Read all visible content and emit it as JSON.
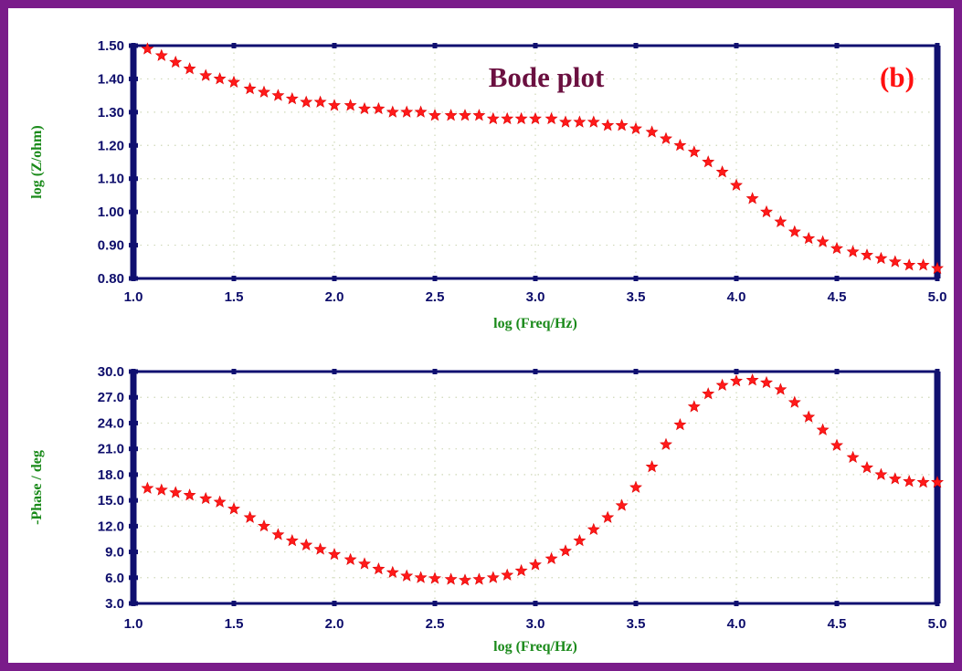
{
  "chart_data": [
    {
      "type": "scatter",
      "title": "Bode plot",
      "panel_label": "(b)",
      "xlabel": "log (Freq/Hz)",
      "ylabel": "log (Z/ohm)",
      "xlim": [
        1.0,
        5.0
      ],
      "ylim": [
        0.8,
        1.5
      ],
      "xticks": [
        "1.0",
        "1.5",
        "2.0",
        "2.5",
        "3.0",
        "3.5",
        "4.0",
        "4.5",
        "5.0"
      ],
      "yticks": [
        "0.80",
        "0.90",
        "1.00",
        "1.10",
        "1.20",
        "1.30",
        "1.40",
        "1.50"
      ],
      "grid": true,
      "marker": "star",
      "marker_color": "#ff1a1a",
      "x": [
        1.07,
        1.14,
        1.21,
        1.28,
        1.36,
        1.43,
        1.5,
        1.58,
        1.65,
        1.72,
        1.79,
        1.86,
        1.93,
        2.0,
        2.08,
        2.15,
        2.22,
        2.29,
        2.36,
        2.43,
        2.5,
        2.58,
        2.65,
        2.72,
        2.79,
        2.86,
        2.93,
        3.0,
        3.08,
        3.15,
        3.22,
        3.29,
        3.36,
        3.43,
        3.5,
        3.58,
        3.65,
        3.72,
        3.79,
        3.86,
        3.93,
        4.0,
        4.08,
        4.15,
        4.22,
        4.29,
        4.36,
        4.43,
        4.5,
        4.58,
        4.65,
        4.72,
        4.79,
        4.86,
        4.93,
        5.0
      ],
      "y": [
        1.49,
        1.47,
        1.45,
        1.43,
        1.41,
        1.4,
        1.39,
        1.37,
        1.36,
        1.35,
        1.34,
        1.33,
        1.33,
        1.32,
        1.32,
        1.31,
        1.31,
        1.3,
        1.3,
        1.3,
        1.29,
        1.29,
        1.29,
        1.29,
        1.28,
        1.28,
        1.28,
        1.28,
        1.28,
        1.27,
        1.27,
        1.27,
        1.26,
        1.26,
        1.25,
        1.24,
        1.22,
        1.2,
        1.18,
        1.15,
        1.12,
        1.08,
        1.04,
        1.0,
        0.97,
        0.94,
        0.92,
        0.91,
        0.89,
        0.88,
        0.87,
        0.86,
        0.85,
        0.84,
        0.84,
        0.83
      ]
    },
    {
      "type": "scatter",
      "xlabel": "log (Freq/Hz)",
      "ylabel": "-Phase / deg",
      "xlim": [
        1.0,
        5.0
      ],
      "ylim": [
        3.0,
        30.0
      ],
      "xticks": [
        "1.0",
        "1.5",
        "2.0",
        "2.5",
        "3.0",
        "3.5",
        "4.0",
        "4.5",
        "5.0"
      ],
      "yticks": [
        "3.0",
        "6.0",
        "9.0",
        "12.0",
        "15.0",
        "18.0",
        "21.0",
        "24.0",
        "27.0",
        "30.0"
      ],
      "grid": true,
      "marker": "star",
      "marker_color": "#ff1a1a",
      "x": [
        1.07,
        1.14,
        1.21,
        1.28,
        1.36,
        1.43,
        1.5,
        1.58,
        1.65,
        1.72,
        1.79,
        1.86,
        1.93,
        2.0,
        2.08,
        2.15,
        2.22,
        2.29,
        2.36,
        2.43,
        2.5,
        2.58,
        2.65,
        2.72,
        2.79,
        2.86,
        2.93,
        3.0,
        3.08,
        3.15,
        3.22,
        3.29,
        3.36,
        3.43,
        3.5,
        3.58,
        3.65,
        3.72,
        3.79,
        3.86,
        3.93,
        4.0,
        4.08,
        4.15,
        4.22,
        4.29,
        4.36,
        4.43,
        4.5,
        4.58,
        4.65,
        4.72,
        4.79,
        4.86,
        4.93,
        5.0
      ],
      "y": [
        16.4,
        16.2,
        15.9,
        15.6,
        15.2,
        14.8,
        14.0,
        13.0,
        12.0,
        11.0,
        10.3,
        9.8,
        9.3,
        8.7,
        8.1,
        7.6,
        7.0,
        6.6,
        6.2,
        6.0,
        5.9,
        5.8,
        5.7,
        5.8,
        6.0,
        6.3,
        6.8,
        7.5,
        8.2,
        9.1,
        10.3,
        11.6,
        13.0,
        14.4,
        16.5,
        18.9,
        21.5,
        23.8,
        25.9,
        27.4,
        28.4,
        28.9,
        29.0,
        28.7,
        27.9,
        26.4,
        24.7,
        23.2,
        21.4,
        20.0,
        18.8,
        18.0,
        17.5,
        17.2,
        17.1,
        17.1
      ]
    }
  ]
}
